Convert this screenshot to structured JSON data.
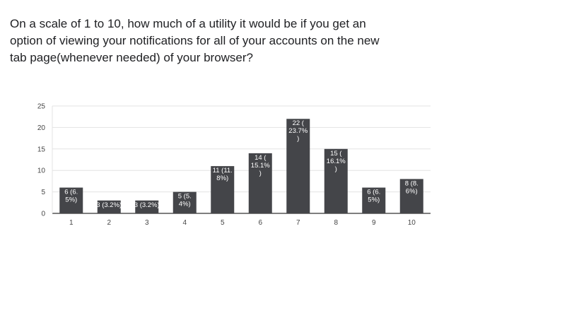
{
  "question": "On a scale of 1 to 10, how much of a utility it would be if you get an\noption of viewing your notifications for all of your accounts on the new\ntab page(whenever needed) of your browser?",
  "chart_data": {
    "type": "bar",
    "title": "",
    "xlabel": "",
    "ylabel": "",
    "categories": [
      "1",
      "2",
      "3",
      "4",
      "5",
      "6",
      "7",
      "8",
      "9",
      "10"
    ],
    "values": [
      6,
      3,
      3,
      5,
      11,
      14,
      22,
      15,
      6,
      8
    ],
    "data_labels": [
      [
        "6 (6.",
        "5%)"
      ],
      [
        "3 (3.2%)"
      ],
      [
        "3 (3.2%)"
      ],
      [
        "5 (5.",
        "4%)"
      ],
      [
        "11 (11.",
        "8%)"
      ],
      [
        "14 (",
        "15.1%",
        ")"
      ],
      [
        "22 (",
        "23.7%",
        ")"
      ],
      [
        "15 (",
        "16.1%",
        ")"
      ],
      [
        "6 (6.",
        "5%)"
      ],
      [
        "8 (8.",
        "6%)"
      ]
    ],
    "ylim": [
      0,
      25
    ],
    "yticks": [
      0,
      5,
      10,
      15,
      20,
      25
    ],
    "grid": true,
    "bar_color": "#444549"
  }
}
